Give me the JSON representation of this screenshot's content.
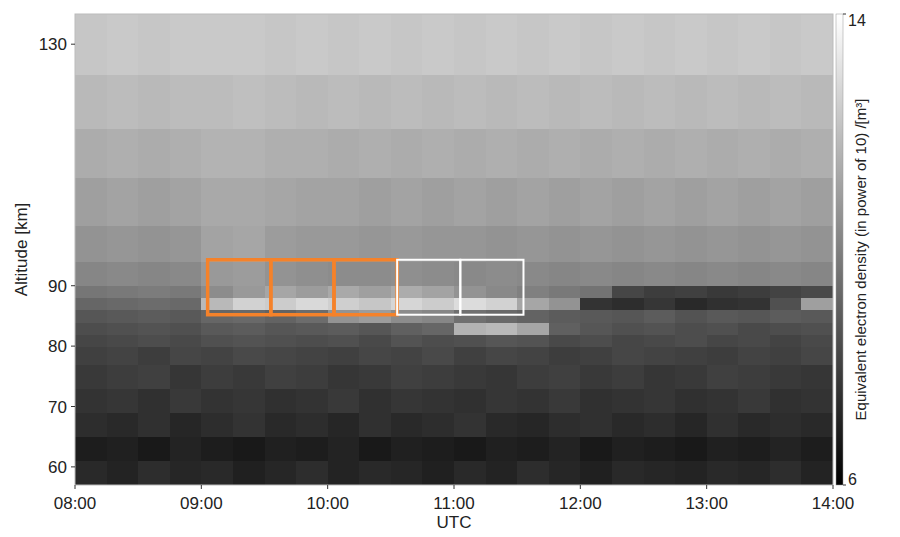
{
  "chart_data": {
    "type": "heatmap",
    "x_label": "UTC",
    "y_label": "Altitude [km]",
    "xlim": [
      8,
      14
    ],
    "xticks": [
      {
        "value": 8,
        "label": "08:00"
      },
      {
        "value": 9,
        "label": "09:00"
      },
      {
        "value": 10,
        "label": "10:00"
      },
      {
        "value": 11,
        "label": "11:00"
      },
      {
        "value": 12,
        "label": "12:00"
      },
      {
        "value": 13,
        "label": "13:00"
      },
      {
        "value": 14,
        "label": "14:00"
      }
    ],
    "ylim": [
      57,
      135
    ],
    "yticks": [
      60,
      70,
      80,
      90,
      130
    ],
    "x_edges": [
      8,
      8.25,
      8.5,
      8.75,
      9,
      9.25,
      9.5,
      9.75,
      10,
      10.25,
      10.5,
      10.75,
      11,
      11.25,
      11.5,
      11.75,
      12,
      12.25,
      12.5,
      12.75,
      13,
      13.25,
      13.5,
      13.75,
      14
    ],
    "y_edges": [
      57,
      61,
      65,
      69,
      73,
      77,
      80,
      82,
      84,
      86,
      88,
      90,
      94,
      100,
      108,
      116,
      125,
      135
    ],
    "z": [
      [
        7.3,
        7.1,
        7.4,
        7.2,
        7.3,
        7.0,
        7.2,
        7.4,
        7.1,
        7.3,
        7.2,
        7.0,
        7.3,
        7.1,
        7.4,
        7.2,
        7.0,
        7.3,
        7.2,
        7.1,
        7.3,
        7.2,
        7.4,
        7.1
      ],
      [
        6.9,
        7.0,
        6.8,
        7.1,
        6.9,
        6.8,
        7.0,
        6.9,
        7.1,
        6.8,
        7.0,
        6.9,
        6.8,
        7.0,
        6.9,
        7.1,
        6.8,
        7.0,
        6.9,
        6.8,
        7.0,
        6.9,
        7.1,
        6.9
      ],
      [
        7.4,
        7.3,
        7.5,
        7.2,
        7.4,
        7.6,
        7.3,
        7.4,
        7.2,
        7.5,
        7.3,
        7.4,
        7.6,
        7.3,
        7.2,
        7.4,
        7.5,
        7.3,
        7.4,
        7.2,
        7.5,
        7.3,
        7.4,
        7.3
      ],
      [
        7.6,
        7.7,
        7.5,
        7.8,
        7.6,
        7.7,
        7.5,
        7.6,
        7.8,
        7.5,
        7.7,
        7.6,
        7.5,
        7.7,
        7.6,
        7.8,
        7.5,
        7.6,
        7.7,
        7.5,
        7.6,
        7.8,
        7.5,
        7.6
      ],
      [
        7.8,
        7.9,
        8.0,
        7.7,
        7.9,
        7.8,
        8.0,
        7.9,
        7.7,
        7.8,
        8.0,
        7.9,
        7.8,
        7.7,
        7.9,
        8.0,
        7.8,
        7.9,
        7.7,
        7.8,
        8.0,
        7.9,
        7.8,
        7.7
      ],
      [
        8.0,
        8.1,
        7.9,
        8.2,
        8.1,
        8.3,
        8.2,
        8.1,
        8.0,
        8.2,
        8.1,
        8.3,
        8.0,
        8.2,
        8.1,
        7.9,
        8.0,
        8.2,
        8.1,
        8.0,
        7.9,
        8.1,
        8.0,
        8.2
      ],
      [
        8.2,
        8.3,
        8.4,
        8.3,
        8.5,
        8.6,
        8.5,
        8.4,
        8.5,
        8.3,
        8.6,
        8.4,
        8.5,
        8.7,
        8.6,
        8.3,
        8.4,
        8.2,
        8.3,
        8.4,
        8.2,
        8.3,
        8.1,
        8.3
      ],
      [
        8.4,
        8.5,
        8.6,
        8.5,
        8.8,
        8.9,
        8.7,
        8.8,
        8.9,
        8.7,
        9.0,
        9.2,
        11.6,
        11.8,
        11.2,
        9.0,
        8.7,
        8.5,
        8.6,
        8.4,
        8.5,
        8.3,
        8.4,
        8.5
      ],
      [
        8.7,
        8.8,
        8.9,
        8.8,
        9.2,
        9.3,
        9.1,
        9.4,
        10.6,
        10.9,
        10.4,
        10.2,
        9.5,
        9.3,
        9.1,
        8.9,
        8.8,
        8.7,
        8.9,
        8.6,
        8.8,
        8.7,
        8.9,
        8.8
      ],
      [
        9.2,
        9.3,
        9.4,
        9.3,
        11.8,
        12.6,
        12.4,
        12.8,
        12.5,
        12.2,
        12.7,
        12.4,
        12.9,
        12.6,
        11.2,
        10.6,
        7.6,
        7.4,
        7.7,
        7.3,
        7.5,
        7.6,
        8.5,
        11.0
      ],
      [
        9.7,
        9.8,
        9.9,
        9.8,
        10.4,
        10.8,
        11.2,
        10.9,
        11.3,
        11.0,
        11.4,
        11.1,
        10.6,
        10.3,
        10.0,
        9.8,
        9.6,
        8.2,
        7.9,
        8.0,
        7.8,
        7.9,
        8.1,
        8.3
      ],
      [
        10.2,
        10.3,
        10.2,
        10.3,
        10.8,
        10.9,
        10.6,
        10.5,
        10.4,
        10.4,
        10.5,
        10.4,
        10.3,
        10.4,
        10.3,
        10.2,
        10.3,
        10.2,
        10.3,
        10.2,
        10.3,
        10.2,
        10.3,
        10.2
      ],
      [
        10.6,
        10.7,
        10.6,
        10.7,
        11.1,
        11.2,
        10.9,
        10.8,
        10.8,
        10.7,
        10.8,
        10.7,
        10.7,
        10.6,
        10.7,
        10.6,
        10.7,
        10.6,
        10.7,
        10.6,
        10.7,
        10.6,
        10.7,
        10.6
      ],
      [
        11.0,
        11.1,
        11.0,
        11.1,
        11.3,
        11.3,
        11.2,
        11.1,
        11.1,
        11.0,
        11.1,
        11.0,
        11.1,
        11.0,
        11.1,
        11.0,
        11.1,
        11.0,
        11.1,
        11.0,
        11.1,
        11.0,
        11.1,
        11.0
      ],
      [
        11.4,
        11.5,
        11.4,
        11.5,
        11.6,
        11.6,
        11.5,
        11.5,
        11.4,
        11.5,
        11.4,
        11.5,
        11.4,
        11.5,
        11.4,
        11.5,
        11.4,
        11.5,
        11.4,
        11.5,
        11.4,
        11.5,
        11.4,
        11.5
      ],
      [
        11.8,
        11.9,
        11.8,
        11.9,
        11.9,
        12.0,
        11.9,
        11.8,
        11.9,
        11.8,
        11.9,
        11.8,
        11.9,
        11.8,
        11.9,
        11.8,
        11.9,
        11.8,
        11.9,
        11.8,
        11.9,
        11.8,
        11.9,
        11.8
      ],
      [
        12.2,
        12.3,
        12.2,
        12.3,
        12.3,
        12.3,
        12.2,
        12.3,
        12.2,
        12.3,
        12.2,
        12.3,
        12.2,
        12.3,
        12.2,
        12.3,
        12.2,
        12.3,
        12.2,
        12.3,
        12.2,
        12.3,
        12.2,
        12.3
      ]
    ],
    "colorbar_range": [
      6,
      14
    ],
    "colorbar_ticks": [
      6,
      14
    ],
    "colorbar_label": "Equivalent electron density (in power of 10) /[m³]",
    "boxes": [
      {
        "x0": 9.05,
        "x1": 9.55,
        "y0": 85.2,
        "y1": 94.3,
        "color": "#f5822a"
      },
      {
        "x0": 9.55,
        "x1": 10.05,
        "y0": 85.2,
        "y1": 94.3,
        "color": "#f5822a"
      },
      {
        "x0": 10.05,
        "x1": 10.55,
        "y0": 85.2,
        "y1": 94.3,
        "color": "#f5822a"
      },
      {
        "x0": 10.55,
        "x1": 11.05,
        "y0": 85.2,
        "y1": 94.3,
        "color": "#ffffff"
      },
      {
        "x0": 11.05,
        "x1": 11.55,
        "y0": 85.2,
        "y1": 94.3,
        "color": "#ffffff"
      }
    ]
  }
}
